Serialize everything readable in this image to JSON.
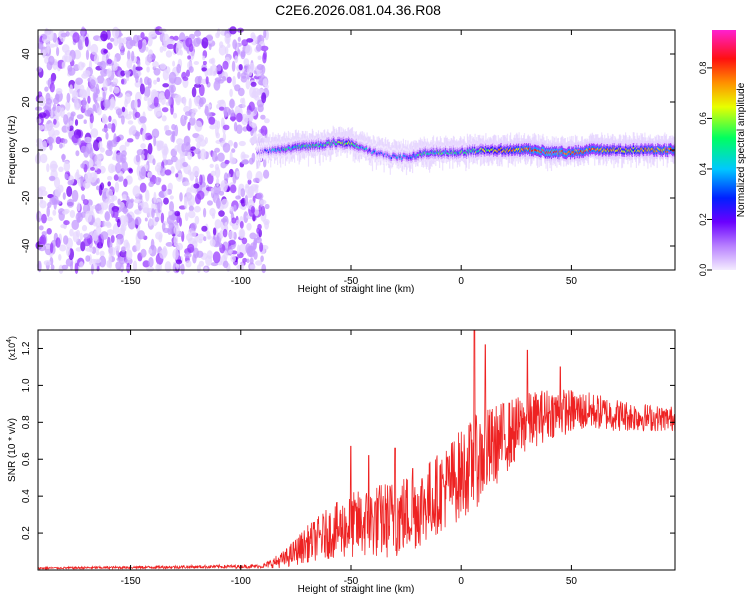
{
  "figure": {
    "title": "C2E6.2026.081.04.36.R08"
  },
  "chart_data": [
    {
      "type": "heatmap",
      "xlabel": "Height of straight line (km)",
      "ylabel": "Frequency (Hz)",
      "xlim": [
        -192,
        97
      ],
      "ylim": [
        -50,
        50
      ],
      "x_ticks": [
        -150,
        -100,
        -50,
        0,
        50
      ],
      "y_ticks": [
        -40,
        -20,
        0,
        20,
        40
      ],
      "colorbar": {
        "label": "Normalized spectral amplitude",
        "range": [
          0,
          0.95
        ],
        "ticks": [
          0.0,
          0.2,
          0.4,
          0.6,
          0.8
        ],
        "colormap": [
          "#ffffff",
          "#e0c8ff",
          "#9b30ff",
          "#2000ff",
          "#00c8ff",
          "#00ff60",
          "#ffff00",
          "#ff8000",
          "#ff0000",
          "#ff00ff"
        ]
      },
      "noise_region_x": [
        -192,
        -88
      ],
      "signal_trace": {
        "x": [
          -93,
          -85,
          -75,
          -65,
          -58,
          -52,
          -45,
          -40,
          -35,
          -30,
          -25,
          -20,
          -15,
          -10,
          -5,
          0,
          10,
          20,
          30,
          40,
          50,
          60,
          70,
          80,
          90,
          97
        ],
        "frequency": [
          -1,
          0,
          1,
          2,
          3,
          3,
          1,
          -1,
          -2,
          -3,
          -3,
          -2,
          -1,
          -1,
          -1,
          -1,
          0,
          0,
          0,
          -1,
          -1,
          0,
          0,
          0,
          0,
          0
        ],
        "peak_amplitude": [
          0.2,
          0.4,
          0.5,
          0.5,
          0.5,
          0.6,
          0.4,
          0.4,
          0.3,
          0.4,
          0.4,
          0.5,
          0.5,
          0.5,
          0.5,
          0.5,
          0.6,
          0.7,
          0.8,
          0.9,
          0.8,
          0.8,
          0.7,
          0.7,
          0.8,
          0.8
        ]
      }
    },
    {
      "type": "line",
      "xlabel": "Height of straight line (km)",
      "ylabel": "SNR (10 * v/v)",
      "y_multiplier": "(x10",
      "y_multiplier_exp": "4",
      "y_multiplier_close": ")",
      "xlim": [
        -192,
        97
      ],
      "ylim": [
        0,
        1.3
      ],
      "x_ticks": [
        -150,
        -100,
        -50,
        0,
        50
      ],
      "y_ticks": [
        0.2,
        0.4,
        0.6,
        0.8,
        1.0,
        1.2
      ],
      "color": "#ee2222",
      "envelope": {
        "x": [
          -192,
          -90,
          -80,
          -70,
          -60,
          -50,
          -40,
          -30,
          -20,
          -10,
          0,
          10,
          20,
          30,
          40,
          50,
          60,
          70,
          80,
          90,
          97
        ],
        "mean": [
          0.01,
          0.02,
          0.06,
          0.14,
          0.2,
          0.24,
          0.26,
          0.28,
          0.33,
          0.42,
          0.52,
          0.62,
          0.72,
          0.8,
          0.85,
          0.86,
          0.86,
          0.84,
          0.83,
          0.82,
          0.82
        ],
        "spread": [
          0.005,
          0.01,
          0.05,
          0.1,
          0.14,
          0.18,
          0.2,
          0.22,
          0.22,
          0.22,
          0.25,
          0.25,
          0.2,
          0.16,
          0.14,
          0.12,
          0.1,
          0.09,
          0.08,
          0.07,
          0.07
        ]
      },
      "peaks": [
        {
          "x": -50,
          "y": 0.67
        },
        {
          "x": -42,
          "y": 0.62
        },
        {
          "x": -30,
          "y": 0.66
        },
        {
          "x": -22,
          "y": 0.55
        },
        {
          "x": 6,
          "y": 1.32
        },
        {
          "x": 11,
          "y": 1.22
        },
        {
          "x": 30,
          "y": 1.19
        },
        {
          "x": 45,
          "y": 1.1
        }
      ]
    }
  ]
}
